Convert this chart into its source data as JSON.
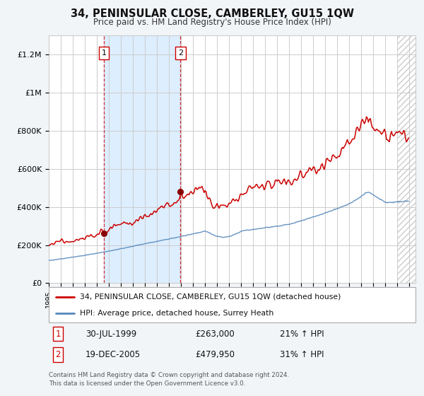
{
  "title": "34, PENINSULAR CLOSE, CAMBERLEY, GU15 1QW",
  "subtitle": "Price paid vs. HM Land Registry's House Price Index (HPI)",
  "ylim": [
    0,
    1300000
  ],
  "yticks": [
    0,
    200000,
    400000,
    600000,
    800000,
    1000000,
    1200000
  ],
  "ytick_labels": [
    "£0",
    "£200K",
    "£400K",
    "£600K",
    "£800K",
    "£1M",
    "£1.2M"
  ],
  "bg_color": "#f2f5f8",
  "plot_bg_color": "#ffffff",
  "grid_color": "#cccccc",
  "red_color": "#cc0000",
  "blue_color": "#5588bb",
  "shade_color": "#ddeeff",
  "t1_year": 1999.58,
  "t1_price": 263000,
  "t2_year": 2005.96,
  "t2_price": 479950,
  "legend_line1": "34, PENINSULAR CLOSE, CAMBERLEY, GU15 1QW (detached house)",
  "legend_line2": "HPI: Average price, detached house, Surrey Heath",
  "row1_num": "1",
  "row1_date": "30-JUL-1999",
  "row1_price": "£263,000",
  "row1_hpi": "21% ↑ HPI",
  "row2_num": "2",
  "row2_date": "19-DEC-2005",
  "row2_price": "£479,950",
  "row2_hpi": "31% ↑ HPI",
  "footer": "Contains HM Land Registry data © Crown copyright and database right 2024.\nThis data is licensed under the Open Government Licence v3.0.",
  "xstart": 1995,
  "xend": 2025
}
